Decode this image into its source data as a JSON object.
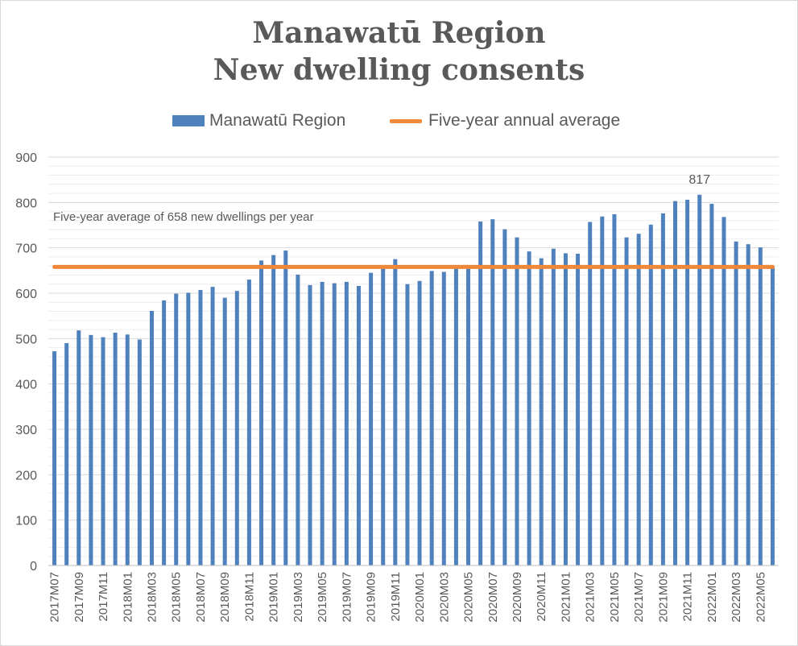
{
  "title_line1": "Manawatū Region",
  "title_line2": "New dwelling consents",
  "legend": {
    "bars": "Manawatū Region",
    "line": "Five-year annual average"
  },
  "annotation": "Five-year average of 658 new dwellings per year",
  "colors": {
    "bars": "#4f81bd",
    "line": "#f0883a",
    "grid": "#d9d9d9",
    "text": "#595959"
  },
  "chart_data": {
    "type": "bar",
    "ylim": [
      0,
      900
    ],
    "yticks": [
      0,
      100,
      200,
      300,
      400,
      500,
      600,
      700,
      800,
      900
    ],
    "grid": true,
    "legend_position": "top",
    "categories": [
      "2017M07",
      "2017M08",
      "2017M09",
      "2017M10",
      "2017M11",
      "2017M12",
      "2018M01",
      "2018M02",
      "2018M03",
      "2018M04",
      "2018M05",
      "2018M06",
      "2018M07",
      "2018M08",
      "2018M09",
      "2018M10",
      "2018M11",
      "2018M12",
      "2019M01",
      "2019M02",
      "2019M03",
      "2019M04",
      "2019M05",
      "2019M06",
      "2019M07",
      "2019M08",
      "2019M09",
      "2019M10",
      "2019M11",
      "2019M12",
      "2020M01",
      "2020M02",
      "2020M03",
      "2020M04",
      "2020M05",
      "2020M06",
      "2020M07",
      "2020M08",
      "2020M09",
      "2020M10",
      "2020M11",
      "2020M12",
      "2021M01",
      "2021M02",
      "2021M03",
      "2021M04",
      "2021M05",
      "2021M06",
      "2021M07",
      "2021M08",
      "2021M09",
      "2021M10",
      "2021M11",
      "2021M12",
      "2022M01",
      "2022M02",
      "2022M03",
      "2022M04",
      "2022M05",
      "2022M06"
    ],
    "xtick_labels": [
      "2017M07",
      "2017M09",
      "2017M11",
      "2018M01",
      "2018M03",
      "2018M05",
      "2018M07",
      "2018M09",
      "2018M11",
      "2019M01",
      "2019M03",
      "2019M05",
      "2019M07",
      "2019M09",
      "2019M11",
      "2020M01",
      "2020M03",
      "2020M05",
      "2020M07",
      "2020M09",
      "2020M11",
      "2021M01",
      "2021M03",
      "2021M05",
      "2021M07",
      "2021M09",
      "2021M11",
      "2022M01",
      "2022M03",
      "2022M05"
    ],
    "series": [
      {
        "name": "Manawatū Region",
        "type": "bar",
        "values": [
          472,
          490,
          518,
          508,
          503,
          513,
          509,
          498,
          561,
          584,
          599,
          601,
          607,
          614,
          590,
          605,
          630,
          672,
          684,
          694,
          641,
          618,
          625,
          622,
          625,
          616,
          645,
          658,
          675,
          620,
          627,
          649,
          647,
          658,
          658,
          758,
          763,
          741,
          723,
          692,
          677,
          698,
          688,
          687,
          757,
          769,
          774,
          723,
          731,
          751,
          776,
          803,
          806,
          817,
          797,
          768,
          714,
          708,
          701,
          658
        ],
        "labels": [
          {
            "index": 53,
            "text": "817"
          }
        ]
      },
      {
        "name": "Five-year annual average",
        "type": "line",
        "value": 658
      }
    ]
  }
}
